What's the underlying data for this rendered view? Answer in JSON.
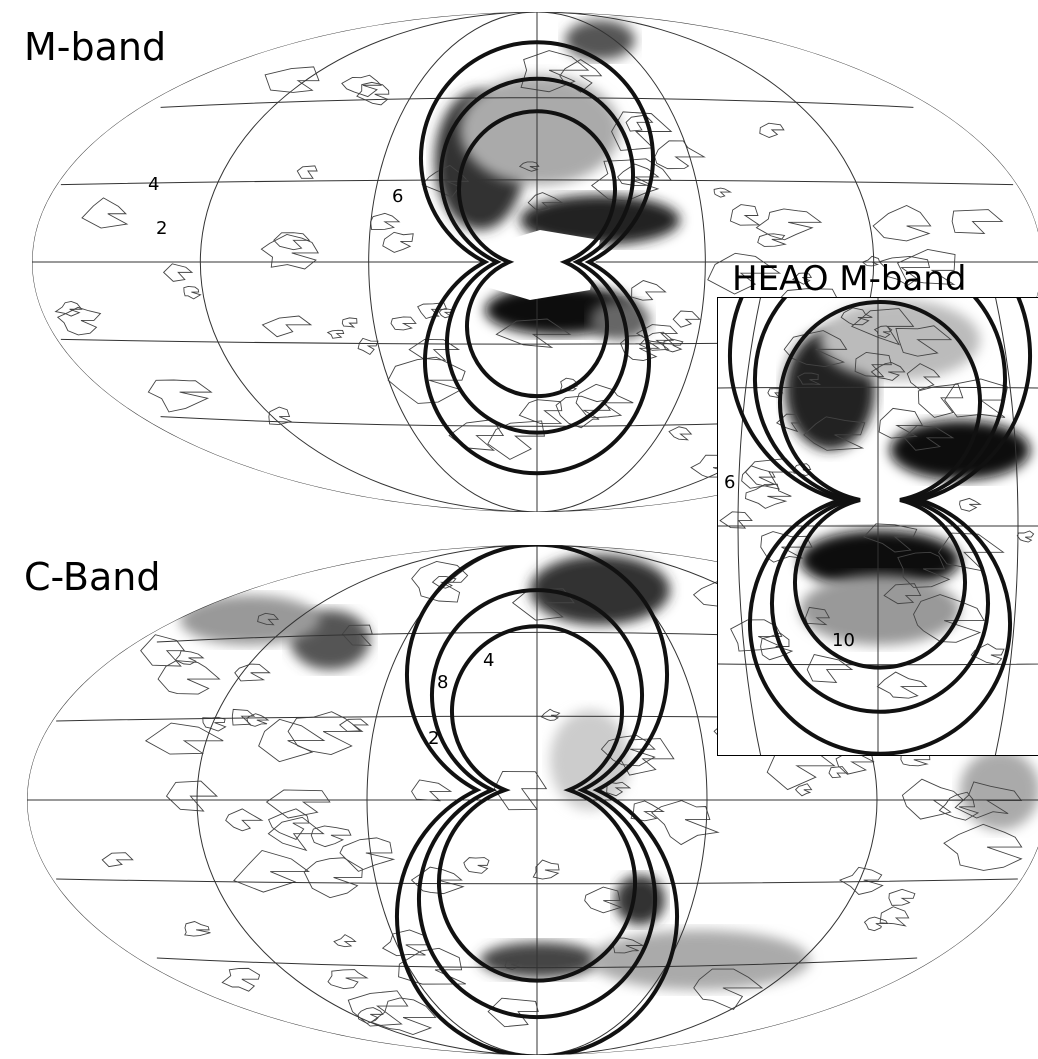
{
  "panels": [
    {
      "title": "M-band",
      "contour_labels": [
        "4",
        "2",
        "6"
      ]
    },
    {
      "title": "C-Band",
      "contour_labels": [
        "8",
        "4",
        "2"
      ]
    }
  ],
  "inset": {
    "title": "HEAO M-band",
    "contour_labels": [
      "6",
      "10"
    ]
  }
}
